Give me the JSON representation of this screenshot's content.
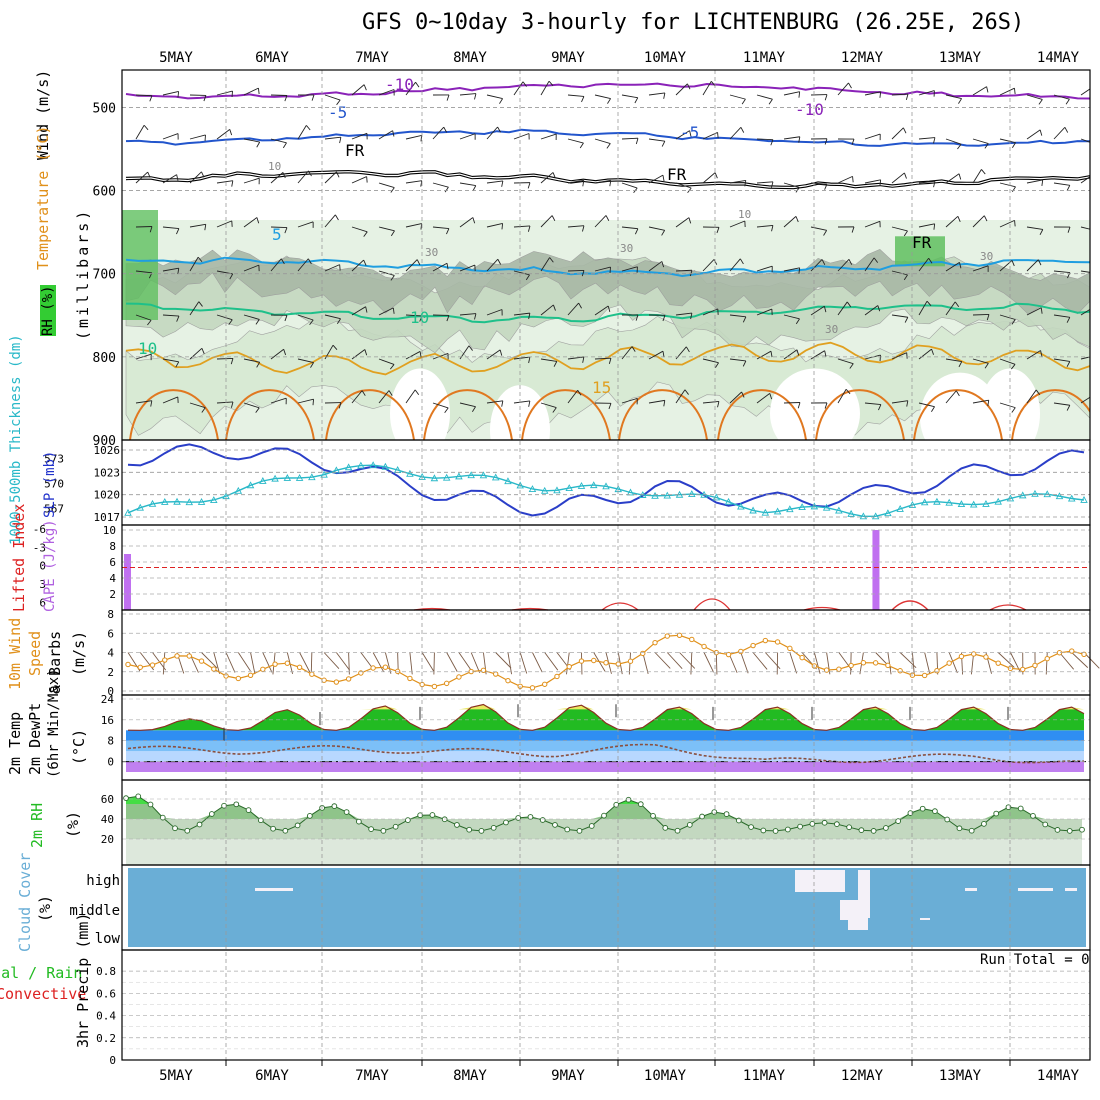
{
  "title": "GFS 0~10day 3-hourly for LICHTENBURG (26.25E, 26S)",
  "days": [
    "5MAY",
    "6MAY",
    "7MAY",
    "8MAY",
    "9MAY",
    "10MAY",
    "11MAY",
    "12MAY",
    "13MAY",
    "14MAY"
  ],
  "colors": {
    "green_label": "#22bb22",
    "red_label": "#dd2222",
    "orange_label": "#e0901a",
    "cyan_label": "#28b8c8",
    "blue_label": "#2233cc",
    "purple_label": "#b060e0",
    "cloud": "#6aaed6",
    "rh_fill": "#66cc66"
  },
  "panels": {
    "upper_air": {
      "ylabel_wind": "Wind (m/s)",
      "ylabel_temp": "Temperature (°C)",
      "ylabel_rh": "RH (%)",
      "ylabel_units": "(millibars)",
      "yticks": [
        "500",
        "600",
        "700",
        "800",
        "900"
      ],
      "isotherm_labels": [
        "-10",
        "-10",
        "-5",
        "-5",
        "5",
        "10",
        "10",
        "FR",
        "FR",
        "FR",
        "15"
      ],
      "rh_labels": [
        "10",
        "10",
        "30",
        "30",
        "30",
        "30"
      ]
    },
    "slp": {
      "ylabel_thk": "1000-500mb Thickness (dm)",
      "ylabel_slp": "SLP (mb)",
      "left_ticks": [
        "573",
        "570",
        "567"
      ],
      "right_ticks": [
        "1026",
        "1023",
        "1020",
        "1017"
      ]
    },
    "cape": {
      "ylabel_li": "Lifted Index",
      "ylabel_cape": "CAPE (J/kg)",
      "left_ticks": [
        "-6",
        "-3",
        "0",
        "3",
        "6"
      ],
      "right_ticks": [
        "10",
        "8",
        "6",
        "4",
        "2"
      ]
    },
    "wind10": {
      "ylabel1": "10m Wind",
      "ylabel2": "Speed",
      "ylabel3": "& Barbs",
      "ylabel_units": "(m/s)",
      "yticks": [
        "8",
        "6",
        "4",
        "2",
        "0"
      ]
    },
    "temp2m": {
      "ylabel1": "2m Temp",
      "ylabel2": "2m DewPt",
      "ylabel3": "(6hr Min/Max)",
      "ylabel_units": "(°C)",
      "yticks": [
        "24",
        "16",
        "8",
        "0"
      ]
    },
    "rh2m": {
      "ylabel": "2m RH",
      "ylabel_units": "(%)",
      "yticks": [
        "60",
        "40",
        "20"
      ]
    },
    "cloud": {
      "ylabel": "Cloud Cover",
      "ylabel_units": "(%)",
      "levels": [
        "high",
        "middle",
        "low"
      ]
    },
    "precip": {
      "ylabel1": "Total / Rain",
      "ylabel2": "Convective",
      "ylabel3": "3hr Precip (mm)",
      "yticks": [
        "0.8",
        "0.6",
        "0.4",
        "0.2",
        "0"
      ],
      "run_total": "Run Total = 0"
    }
  },
  "chart_data": [
    {
      "type": "line",
      "name_internal": "slp_thickness",
      "x": [
        "5MAY",
        "6MAY",
        "7MAY",
        "8MAY",
        "9MAY",
        "10MAY",
        "11MAY",
        "12MAY",
        "13MAY",
        "14MAY"
      ],
      "series": [
        {
          "name": "SLP (mb)",
          "values": [
            1025,
            1026,
            1024,
            1020,
            1018,
            1021,
            1019,
            1020,
            1023,
            1025
          ]
        },
        {
          "name": "1000-500mb Thickness (dm)",
          "values": [
            566.5,
            569,
            572,
            571,
            569.5,
            569,
            567,
            566.5,
            568,
            568.5
          ]
        }
      ]
    },
    {
      "type": "bar",
      "name_internal": "cape",
      "x": [
        "5MAY 00Z",
        "12MAY 12Z"
      ],
      "values": [
        7,
        10
      ],
      "ylim": [
        0,
        10
      ]
    },
    {
      "type": "line",
      "name_internal": "wind10",
      "x": [
        "5MAY",
        "6MAY",
        "7MAY",
        "8MAY",
        "9MAY",
        "10MAY",
        "11MAY",
        "12MAY",
        "13MAY",
        "14MAY"
      ],
      "values": [
        3.5,
        2.2,
        1.8,
        1.3,
        1.2,
        5,
        4.5,
        2,
        3,
        3.3
      ],
      "ylim": [
        0,
        8
      ]
    },
    {
      "type": "area",
      "name_internal": "temp2m",
      "x": [
        "5MAY",
        "6MAY",
        "7MAY",
        "8MAY",
        "9MAY",
        "10MAY",
        "11MAY",
        "12MAY",
        "13MAY",
        "14MAY"
      ],
      "series": [
        {
          "name": "2m Temp max",
          "values": [
            13,
            19,
            21,
            22,
            22,
            21,
            21,
            21,
            21,
            21
          ]
        },
        {
          "name": "2m DewPt",
          "values": [
            5,
            4,
            5,
            4,
            3,
            6,
            0,
            1,
            2,
            -1
          ]
        }
      ],
      "ylim": [
        -4,
        24
      ]
    },
    {
      "type": "area",
      "name_internal": "rh2m",
      "x": [
        "5MAY",
        "6MAY",
        "7MAY",
        "8MAY",
        "9MAY",
        "10MAY",
        "11MAY",
        "12MAY",
        "13MAY",
        "14MAY"
      ],
      "values": [
        64,
        55,
        53,
        43,
        42,
        66,
        34,
        38,
        63,
        34
      ],
      "ylim": [
        0,
        75
      ]
    },
    {
      "type": "bar",
      "name_internal": "precip",
      "x": [],
      "values": [],
      "ylim": [
        0,
        0.9
      ]
    }
  ]
}
